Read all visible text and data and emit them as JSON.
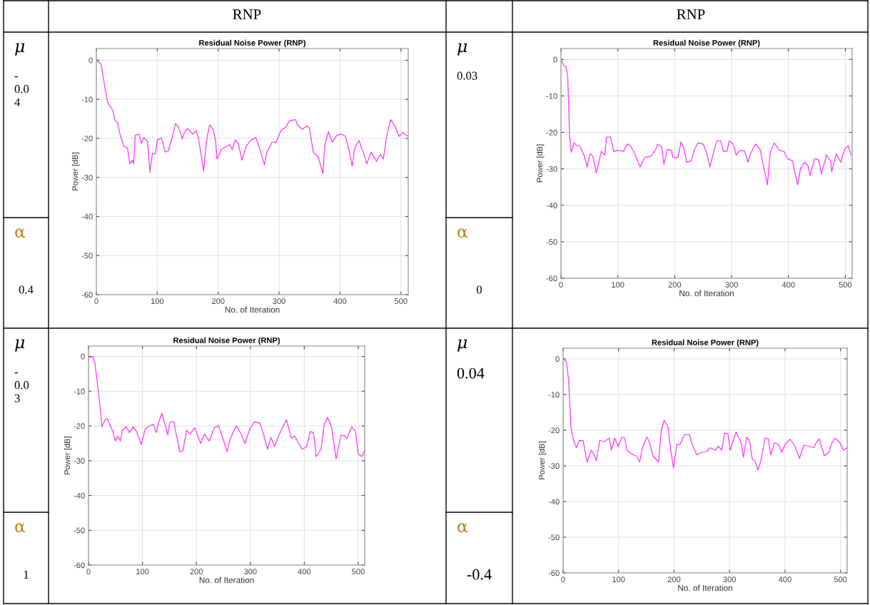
{
  "chart_data": [
    {
      "type": "line",
      "title": "Residual Noise Power (RNP)",
      "xlabel": "No. of Iteration",
      "ylabel": "Power [dB]",
      "annotations": [
        "RNP",
        "μ",
        "-\n0.0\n4",
        "α",
        "0.4"
      ],
      "xlim": [
        0,
        512
      ],
      "ylim": [
        -60,
        3
      ],
      "xticks": [
        0,
        100,
        200,
        300,
        400,
        500
      ],
      "yticks": [
        -60,
        -50,
        -40,
        -30,
        -20,
        -10,
        0
      ],
      "grid": true,
      "marker": "none",
      "line_style": "solid",
      "series": [
        {
          "color": "#ff33ff",
          "x": [
            0,
            8,
            14,
            19,
            27,
            31,
            35,
            39,
            45,
            51,
            55,
            59,
            61,
            64,
            70,
            74,
            78,
            84,
            88,
            92,
            97,
            100,
            107,
            113,
            118,
            125,
            130,
            135,
            141,
            145,
            150,
            158,
            164,
            168,
            172,
            176,
            181,
            186,
            192,
            196,
            198,
            205,
            211,
            219,
            223,
            228,
            233,
            239,
            246,
            254,
            262,
            268,
            276,
            280,
            288,
            295,
            303,
            311,
            317,
            327,
            330,
            338,
            346,
            350,
            356,
            364,
            372,
            375,
            381,
            387,
            395,
            403,
            409,
            415,
            420,
            424,
            431,
            438,
            444,
            451,
            460,
            466,
            471,
            477,
            483,
            489,
            497,
            503,
            512
          ],
          "values": [
            0,
            -1,
            -7,
            -11,
            -12.8,
            -15.5,
            -16,
            -19,
            -22,
            -22.5,
            -26.5,
            -25.6,
            -26.5,
            -19.2,
            -18.9,
            -21.3,
            -19.8,
            -20.7,
            -28.7,
            -23.8,
            -24,
            -20.4,
            -19.9,
            -23.5,
            -23.2,
            -19.5,
            -16.2,
            -17.1,
            -20.1,
            -18.3,
            -17.5,
            -18.9,
            -18,
            -20.4,
            -24.1,
            -28.4,
            -20.4,
            -16.5,
            -17.7,
            -21,
            -25.3,
            -22.9,
            -22.3,
            -21.6,
            -22.9,
            -20.4,
            -21.3,
            -25.6,
            -22,
            -20.4,
            -19.8,
            -22.6,
            -26.8,
            -23.5,
            -21,
            -21,
            -18,
            -17.1,
            -15.5,
            -15.2,
            -16.5,
            -17.7,
            -16.8,
            -17.4,
            -23.5,
            -24.7,
            -29,
            -21.6,
            -18.3,
            -21,
            -19.2,
            -18.9,
            -19.5,
            -23.2,
            -27.1,
            -22.6,
            -20.5,
            -23.5,
            -26.5,
            -23.5,
            -25.9,
            -24.1,
            -25.3,
            -19.2,
            -15.2,
            -16.5,
            -19.5,
            -18.5,
            -19.5
          ]
        }
      ]
    },
    {
      "type": "line",
      "title": "Residual Noise Power (RNP)",
      "xlabel": "No. of Iteration",
      "ylabel": "Power [dB]",
      "annotations": [
        "RNP",
        "μ",
        "0.03",
        "α",
        "0"
      ],
      "xlim": [
        0,
        512
      ],
      "ylim": [
        -60,
        3
      ],
      "xticks": [
        0,
        100,
        200,
        300,
        400,
        500
      ],
      "yticks": [
        -60,
        -50,
        -40,
        -30,
        -20,
        -10,
        0
      ],
      "grid": true,
      "marker": "none",
      "line_style": "solid",
      "series": [
        {
          "color": "#ff33ff",
          "x": [
            0,
            5,
            9,
            12,
            15,
            18,
            23,
            28,
            34,
            41,
            46,
            51,
            56,
            62,
            71,
            77,
            80,
            87,
            93,
            101,
            110,
            116,
            122,
            130,
            139,
            147,
            158,
            166,
            170,
            177,
            181,
            187,
            194,
            197,
            206,
            211,
            216,
            221,
            229,
            235,
            241,
            250,
            256,
            262,
            267,
            274,
            281,
            285,
            292,
            296,
            303,
            308,
            315,
            323,
            329,
            333,
            342,
            350,
            356,
            363,
            368,
            375,
            384,
            392,
            398,
            407,
            416,
            421,
            428,
            434,
            438,
            446,
            453,
            458,
            467,
            474,
            476,
            484,
            492,
            499,
            505,
            510
          ],
          "values": [
            0,
            -1.6,
            -2,
            -4.9,
            -20.6,
            -25.5,
            -22.9,
            -23.6,
            -23.9,
            -26.5,
            -29.5,
            -25.9,
            -26.5,
            -31.1,
            -25.2,
            -26.2,
            -21.3,
            -21.3,
            -25.2,
            -24.9,
            -25.2,
            -23.2,
            -23.6,
            -25.9,
            -29.5,
            -26.9,
            -26.5,
            -24.9,
            -23.2,
            -23.9,
            -28.8,
            -24.6,
            -24.9,
            -26.9,
            -26.9,
            -22.6,
            -24.2,
            -28.2,
            -27.8,
            -24.6,
            -22.9,
            -23.2,
            -25.5,
            -29.5,
            -26.2,
            -22.3,
            -22.3,
            -25.2,
            -25.2,
            -22.3,
            -23.2,
            -26.2,
            -24.9,
            -25.2,
            -28.2,
            -25.9,
            -23.2,
            -24.6,
            -29.1,
            -34.4,
            -25.5,
            -22.9,
            -24.9,
            -25.2,
            -27.2,
            -27.8,
            -34.4,
            -30.1,
            -28.2,
            -29.1,
            -31.8,
            -27.2,
            -27.5,
            -31.4,
            -26.2,
            -27.8,
            -30.8,
            -25.9,
            -28.2,
            -24.6,
            -23.6,
            -26.2
          ]
        }
      ]
    },
    {
      "type": "line",
      "title": "Residual Noise Power (RNP)",
      "xlabel": "No. of Iteration",
      "ylabel": "Power [dB]",
      "annotations": [
        "μ",
        "-\n0.0\n3",
        "α",
        "1"
      ],
      "xlim": [
        0,
        512
      ],
      "ylim": [
        -60,
        3
      ],
      "xticks": [
        0,
        100,
        200,
        300,
        400,
        500
      ],
      "yticks": [
        -60,
        -50,
        -40,
        -30,
        -20,
        -10,
        0
      ],
      "grid": true,
      "marker": "none",
      "line_style": "solid",
      "series": [
        {
          "color": "#ff33ff",
          "x": [
            0,
            8,
            12,
            19,
            25,
            30,
            35,
            39,
            45,
            50,
            54,
            59,
            63,
            70,
            76,
            83,
            89,
            98,
            105,
            111,
            120,
            126,
            129,
            136,
            140,
            147,
            151,
            158,
            169,
            175,
            182,
            188,
            197,
            202,
            208,
            215,
            224,
            233,
            241,
            250,
            257,
            263,
            274,
            283,
            290,
            299,
            307,
            318,
            323,
            332,
            338,
            345,
            354,
            367,
            376,
            382,
            396,
            404,
            411,
            417,
            422,
            431,
            437,
            443,
            450,
            459,
            468,
            475,
            479,
            488,
            495,
            500,
            507,
            512
          ],
          "values": [
            -0.3,
            0,
            -2,
            -11,
            -20.2,
            -18.5,
            -17.8,
            -19.5,
            -21.6,
            -24.3,
            -22.9,
            -24.3,
            -21.2,
            -20.2,
            -21.9,
            -20.2,
            -21.6,
            -25.3,
            -20.9,
            -20.2,
            -19.5,
            -21.9,
            -19.5,
            -16.3,
            -18.5,
            -22.6,
            -18.8,
            -18.8,
            -27.4,
            -27.1,
            -21.2,
            -22.3,
            -20.5,
            -22.6,
            -25,
            -22.3,
            -24.3,
            -20.5,
            -19.9,
            -24,
            -27.4,
            -23.6,
            -19.9,
            -22.3,
            -25,
            -20.9,
            -18.8,
            -19.2,
            -21.6,
            -26.7,
            -23.3,
            -25.9,
            -22.3,
            -18.2,
            -23.6,
            -22.9,
            -26.7,
            -26,
            -21.6,
            -21.9,
            -28.8,
            -26.7,
            -19.5,
            -17.5,
            -19.9,
            -29.5,
            -22.6,
            -22.9,
            -23.6,
            -20.2,
            -21.6,
            -28.1,
            -28.8,
            -27.1
          ]
        }
      ]
    },
    {
      "type": "line",
      "title": "Residual Noise Power (RNP)",
      "xlabel": "No. of Iteration",
      "ylabel": "Power [dB]",
      "annotations": [
        "μ",
        "0.04",
        "α",
        "-0.4"
      ],
      "xlim": [
        0,
        512
      ],
      "ylim": [
        -60,
        3
      ],
      "xticks": [
        0,
        100,
        200,
        300,
        400,
        500
      ],
      "yticks": [
        -60,
        -50,
        -40,
        -30,
        -20,
        -10,
        0
      ],
      "grid": true,
      "marker": "none",
      "line_style": "solid",
      "series": [
        {
          "color": "#ff33ff",
          "x": [
            0,
            6,
            10,
            14,
            18,
            24,
            29,
            36,
            43,
            51,
            56,
            60,
            66,
            74,
            83,
            87,
            93,
            99,
            106,
            111,
            115,
            126,
            132,
            138,
            143,
            151,
            156,
            162,
            172,
            177,
            182,
            189,
            194,
            199,
            205,
            211,
            219,
            228,
            233,
            241,
            250,
            259,
            265,
            274,
            280,
            286,
            291,
            297,
            301,
            312,
            321,
            325,
            331,
            336,
            341,
            346,
            351,
            356,
            364,
            370,
            374,
            381,
            388,
            394,
            400,
            409,
            417,
            426,
            434,
            443,
            452,
            456,
            462,
            471,
            479,
            484,
            490,
            499,
            505,
            512
          ],
          "values": [
            0,
            -0.8,
            -6.2,
            -18.9,
            -22.5,
            -24.9,
            -22.9,
            -22.9,
            -28.9,
            -25.6,
            -26.9,
            -28.6,
            -22.9,
            -23.2,
            -22.2,
            -25.6,
            -22.2,
            -24.5,
            -21.9,
            -22.2,
            -25.6,
            -26.9,
            -27.2,
            -28.9,
            -24.9,
            -21.9,
            -23.5,
            -27.2,
            -28.9,
            -20.2,
            -17.2,
            -19.1,
            -25.6,
            -30.6,
            -23.9,
            -23.9,
            -21.2,
            -21.2,
            -24.2,
            -26.9,
            -26.2,
            -25.9,
            -24.9,
            -25.6,
            -24.5,
            -25.6,
            -20.9,
            -20.9,
            -25.6,
            -20.5,
            -23.5,
            -27.6,
            -21.9,
            -22.9,
            -28.2,
            -28.6,
            -31.2,
            -28.9,
            -22.2,
            -22.5,
            -26.9,
            -23.5,
            -23.9,
            -26.2,
            -24,
            -22.5,
            -24.2,
            -27.9,
            -24.2,
            -24.5,
            -24.9,
            -23.5,
            -22.5,
            -27.2,
            -26.2,
            -23.8,
            -22.2,
            -23.5,
            -25.6,
            -24.9
          ]
        }
      ]
    }
  ]
}
